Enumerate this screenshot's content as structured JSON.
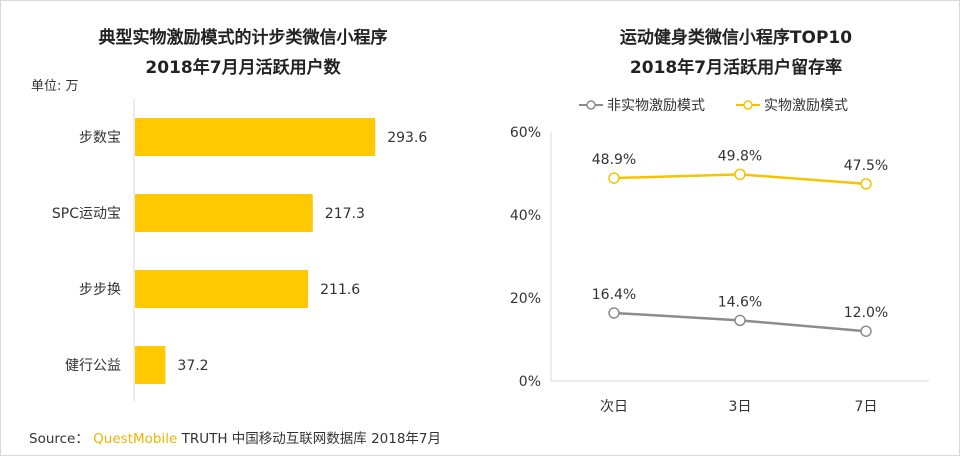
{
  "colors": {
    "bar": "#FFC800",
    "line_gold": "#F5C400",
    "line_gray": "#8C8C8C"
  },
  "left_title": {
    "line1": "典型实物激励模式的计步类微信小程序",
    "line2": "2018年7月月活跃用户数"
  },
  "right_title": {
    "line1": "运动健身类微信小程序TOP10",
    "line2": "2018年7月活跃用户留存率"
  },
  "unit": "单位: 万",
  "source": {
    "prefix": "Source：",
    "brand": "QuestMobile",
    "suffix": "TRUTH 中国移动互联网数据库 2018年7月"
  },
  "chart_data": [
    {
      "type": "bar",
      "orientation": "horizontal",
      "title": "典型实物激励模式的计步类微信小程序 2018年7月月活跃用户数",
      "unit": "万",
      "categories": [
        "步数宝",
        "SPC运动宝",
        "步步换",
        "健行公益"
      ],
      "values": [
        293.6,
        217.3,
        211.6,
        37.2
      ],
      "labels": [
        "293.6",
        "217.3",
        "211.6",
        "37.2"
      ],
      "xlim": [
        0,
        330
      ]
    },
    {
      "type": "line",
      "title": "运动健身类微信小程序TOP10 2018年7月活跃用户留存率",
      "x": [
        "次日",
        "3日",
        "7日"
      ],
      "ylim": [
        0,
        60
      ],
      "yticks": [
        "0%",
        "20%",
        "40%",
        "60%"
      ],
      "ytick_values": [
        0,
        20,
        40,
        60
      ],
      "legend_position": "top",
      "series": [
        {
          "name": "非实物激励模式",
          "values": [
            16.4,
            14.6,
            12.0
          ],
          "labels": [
            "16.4%",
            "14.6%",
            "12.0%"
          ],
          "color": "#8C8C8C"
        },
        {
          "name": "实物激励模式",
          "values": [
            48.9,
            49.8,
            47.5
          ],
          "labels": [
            "48.9%",
            "49.8%",
            "47.5%"
          ],
          "color": "#F5C400"
        }
      ]
    }
  ]
}
